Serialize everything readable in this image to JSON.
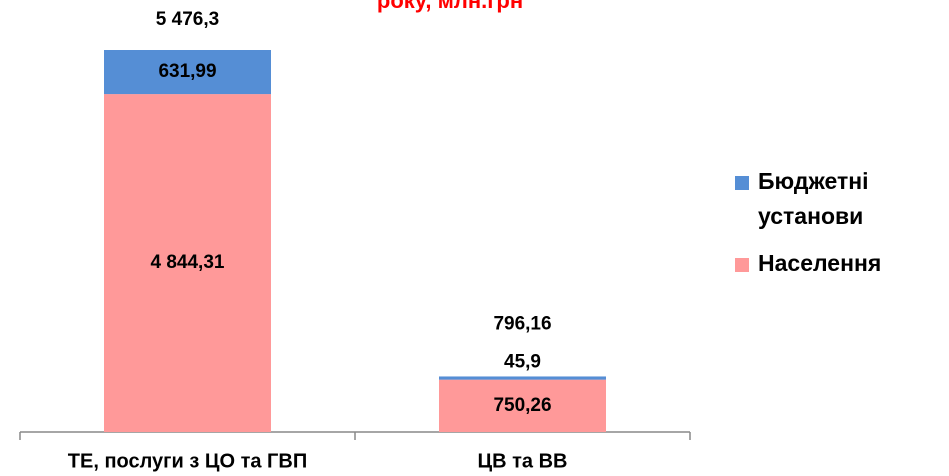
{
  "chart_data": {
    "type": "stacked_bar",
    "title": "року, млн.грн",
    "categories": [
      "ТЕ, послуги з ЦО та ГВП",
      "ЦВ та ВВ"
    ],
    "series": [
      {
        "name": "Населення",
        "color": "#ff9999",
        "values": [
          4844.31,
          750.26
        ],
        "value_labels": [
          "4 844,31",
          "750,26"
        ]
      },
      {
        "name": "Бюджетні установи",
        "color": "#558ed5",
        "values": [
          631.99,
          45.9
        ],
        "value_labels": [
          "631,99",
          "45,9"
        ]
      }
    ],
    "totals": [
      5476.3,
      796.16
    ],
    "total_labels": [
      "5 476,3",
      "796,16"
    ],
    "legend": "right"
  }
}
